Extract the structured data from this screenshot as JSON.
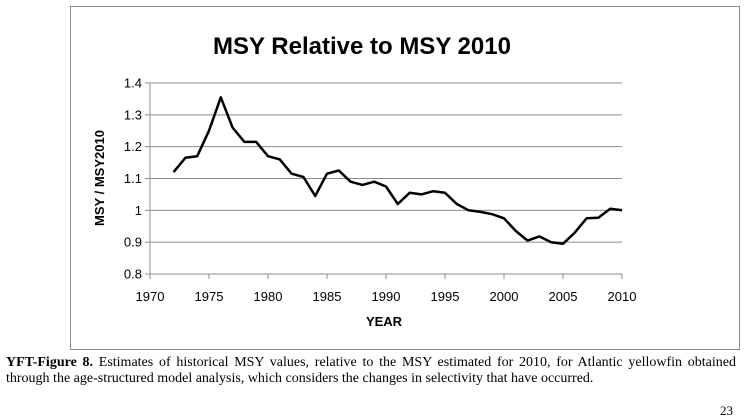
{
  "chart_data": {
    "type": "line",
    "title": "MSY Relative to MSY 2010",
    "xlabel": "YEAR",
    "ylabel": "MSY / MSY2010",
    "xlim": [
      1970,
      2010
    ],
    "ylim": [
      0.8,
      1.4
    ],
    "xticks": [
      "1970",
      "1975",
      "1980",
      "1985",
      "1990",
      "1995",
      "2000",
      "2005",
      "2010"
    ],
    "yticks": [
      "0.8",
      "0.9",
      "1",
      "1.1",
      "1.2",
      "1.3",
      "1.4"
    ],
    "grid": true,
    "legend": "none",
    "line_color": "#000000",
    "series": [
      {
        "x": [
          1972,
          1973,
          1974,
          1975,
          1976,
          1977,
          1978,
          1979,
          1980,
          1981,
          1982,
          1983,
          1984,
          1985,
          1986,
          1987,
          1988,
          1989,
          1990,
          1991,
          1992,
          1993,
          1994,
          1995,
          1996,
          1997,
          1998,
          1999,
          2000,
          2001,
          2002,
          2003,
          2004,
          2005,
          2006,
          2007,
          2008,
          2009,
          2010
        ],
        "values": [
          1.12,
          1.165,
          1.17,
          1.25,
          1.355,
          1.26,
          1.215,
          1.215,
          1.17,
          1.16,
          1.115,
          1.105,
          1.045,
          1.115,
          1.125,
          1.09,
          1.08,
          1.09,
          1.075,
          1.02,
          1.055,
          1.05,
          1.06,
          1.055,
          1.02,
          1.0,
          0.995,
          0.988,
          0.975,
          0.935,
          0.905,
          0.918,
          0.9,
          0.895,
          0.93,
          0.975,
          0.977,
          1.005,
          1.0
        ]
      }
    ]
  },
  "caption": {
    "label": "YFT-Figure 8.",
    "text": " Estimates of historical MSY values, relative to the MSY estimated for 2010, for Atlantic yellowfin obtained through the age-structured model analysis, which considers the changes in selectivity that have occurred."
  },
  "page_number": "23"
}
